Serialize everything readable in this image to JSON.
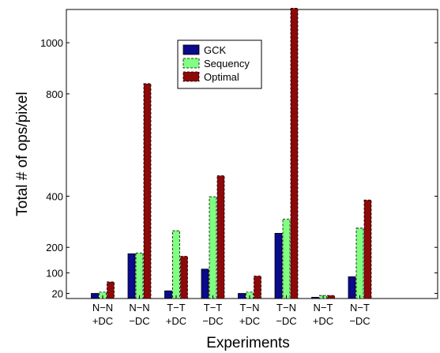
{
  "chart_data": {
    "type": "bar",
    "xlabel": "Experiments",
    "ylabel": "Total # of ops/pixel",
    "ylim": [
      0,
      1130
    ],
    "yticks": [
      20,
      100,
      200,
      400,
      800,
      1000
    ],
    "categories": [
      [
        "N−N",
        "+DC"
      ],
      [
        "N−N",
        "−DC"
      ],
      [
        "T−T",
        "+DC"
      ],
      [
        "T−T",
        "−DC"
      ],
      [
        "T−N",
        "+DC"
      ],
      [
        "T−N",
        "−DC"
      ],
      [
        "N−T",
        "+DC"
      ],
      [
        "N−T",
        "−DC"
      ]
    ],
    "series": [
      {
        "name": "GCK",
        "color": "#0a0a8c",
        "dashed": false,
        "values": [
          20,
          175,
          30,
          115,
          20,
          255,
          5,
          85
        ]
      },
      {
        "name": "Sequency",
        "color": "#80ff80",
        "dashed": true,
        "values": [
          25,
          178,
          265,
          398,
          25,
          310,
          12,
          275
        ]
      },
      {
        "name": "Optimal",
        "color": "#8c0a0a",
        "dashed": true,
        "values": [
          65,
          840,
          165,
          480,
          88,
          1135,
          12,
          385
        ]
      }
    ],
    "legend_position": "top-center",
    "grid": false
  }
}
